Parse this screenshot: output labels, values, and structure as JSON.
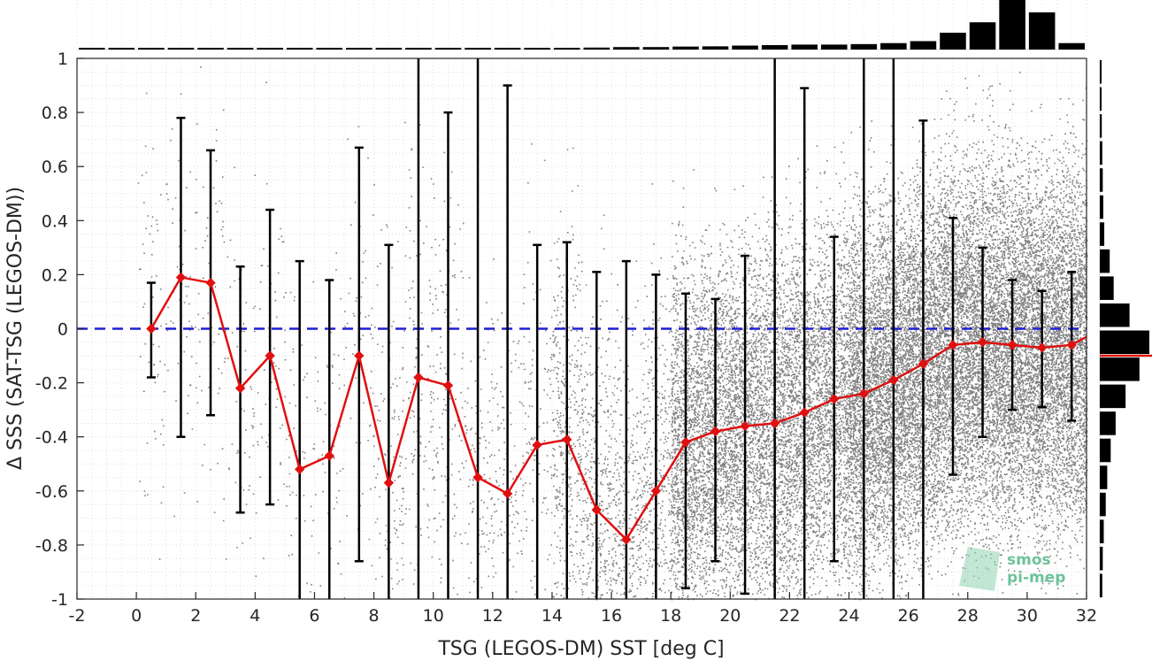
{
  "chart_data": {
    "type": "scatter",
    "xlabel": "TSG (LEGOS-DM) SST [deg C]",
    "ylabel": "Δ SSS (SAT-TSG (LEGOS-DM))",
    "xlim": [
      -2,
      32
    ],
    "ylim": [
      -1,
      1
    ],
    "xticks": [
      "-2",
      "0",
      "2",
      "4",
      "6",
      "8",
      "10",
      "12",
      "14",
      "16",
      "18",
      "20",
      "22",
      "24",
      "26",
      "28",
      "30",
      "32"
    ],
    "yticks": [
      "1",
      "0.8",
      "0.6",
      "0.4",
      "0.2",
      "0",
      "-0.2",
      "-0.4",
      "-0.6",
      "-0.8",
      "-1"
    ],
    "grid": true,
    "reference_line": {
      "y": 0,
      "style": "dashed",
      "color": "#1f1fd6"
    },
    "colors": {
      "scatter": "#808080",
      "mean": "#e01010",
      "errorbar": "#000000",
      "reference": "#1f1fd6"
    },
    "binned_mean": {
      "x": [
        0.5,
        1.5,
        2.5,
        3.5,
        4.5,
        5.5,
        6.5,
        7.5,
        8.5,
        9.5,
        10.5,
        11.5,
        12.5,
        13.5,
        14.5,
        15.5,
        16.5,
        17.5,
        18.5,
        19.5,
        20.5,
        21.5,
        22.5,
        23.5,
        24.5,
        25.5,
        26.5,
        27.5,
        28.5,
        29.5,
        30.5,
        31.5
      ],
      "y": [
        0.0,
        0.19,
        0.17,
        -0.22,
        -0.1,
        -0.52,
        -0.47,
        -0.1,
        -0.57,
        -0.18,
        -0.21,
        -0.55,
        -0.61,
        -0.43,
        -0.41,
        -0.67,
        -0.78,
        -0.6,
        -0.42,
        -0.38,
        -0.36,
        -0.35,
        -0.31,
        -0.26,
        -0.24,
        -0.19,
        -0.13,
        -0.06,
        -0.05,
        -0.06,
        -0.07,
        -0.06
      ],
      "std_upper": [
        0.17,
        0.78,
        0.66,
        0.23,
        0.44,
        0.25,
        0.18,
        0.67,
        0.31,
        1.0,
        0.8,
        1.0,
        0.9,
        0.31,
        0.32,
        0.21,
        0.25,
        0.2,
        0.13,
        0.11,
        0.27,
        1.0,
        0.89,
        0.34,
        1.0,
        1.0,
        0.77,
        0.41,
        0.3,
        0.18,
        0.14,
        0.21
      ],
      "std_lower": [
        -0.18,
        -0.4,
        -0.32,
        -0.68,
        -0.65,
        -1.0,
        -1.0,
        -0.86,
        -1.0,
        -1.0,
        -1.0,
        -1.0,
        -1.0,
        -1.0,
        -1.0,
        -1.0,
        -1.0,
        -1.0,
        -0.96,
        -0.86,
        -0.98,
        -1.0,
        -1.0,
        -0.86,
        -1.0,
        -1.0,
        -1.0,
        -0.54,
        -0.4,
        -0.3,
        -0.29,
        -0.34
      ]
    },
    "mean_line_tail": {
      "x": 32,
      "y": -0.03
    },
    "hist_top": {
      "bin_centers": [
        -1.5,
        -0.5,
        0.5,
        1.5,
        2.5,
        3.5,
        4.5,
        5.5,
        6.5,
        7.5,
        8.5,
        9.5,
        10.5,
        11.5,
        12.5,
        13.5,
        14.5,
        15.5,
        16.5,
        17.5,
        18.5,
        19.5,
        20.5,
        21.5,
        22.5,
        23.5,
        24.5,
        25.5,
        26.5,
        27.5,
        28.5,
        29.5,
        30.5,
        31.5
      ],
      "relative_counts": [
        0.02,
        0.02,
        0.02,
        0.02,
        0.02,
        0.02,
        0.02,
        0.02,
        0.02,
        0.02,
        0.02,
        0.02,
        0.02,
        0.02,
        0.025,
        0.03,
        0.035,
        0.04,
        0.05,
        0.05,
        0.06,
        0.065,
        0.08,
        0.09,
        0.1,
        0.1,
        0.11,
        0.13,
        0.17,
        0.34,
        0.55,
        1.0,
        0.75,
        0.13
      ]
    },
    "hist_right": {
      "bin_centers": [
        0.95,
        0.85,
        0.75,
        0.65,
        0.55,
        0.45,
        0.35,
        0.25,
        0.15,
        0.05,
        -0.05,
        -0.15,
        -0.25,
        -0.35,
        -0.45,
        -0.55,
        -0.65,
        -0.75,
        -0.85,
        -0.95
      ],
      "relative_counts": [
        0.03,
        0.03,
        0.04,
        0.05,
        0.06,
        0.07,
        0.09,
        0.2,
        0.28,
        0.6,
        1.0,
        0.8,
        0.52,
        0.32,
        0.22,
        0.15,
        0.12,
        0.08,
        0.06,
        0.05
      ],
      "median": -0.1
    }
  },
  "watermark": {
    "line1": "smos",
    "line2": "pi-mep"
  }
}
